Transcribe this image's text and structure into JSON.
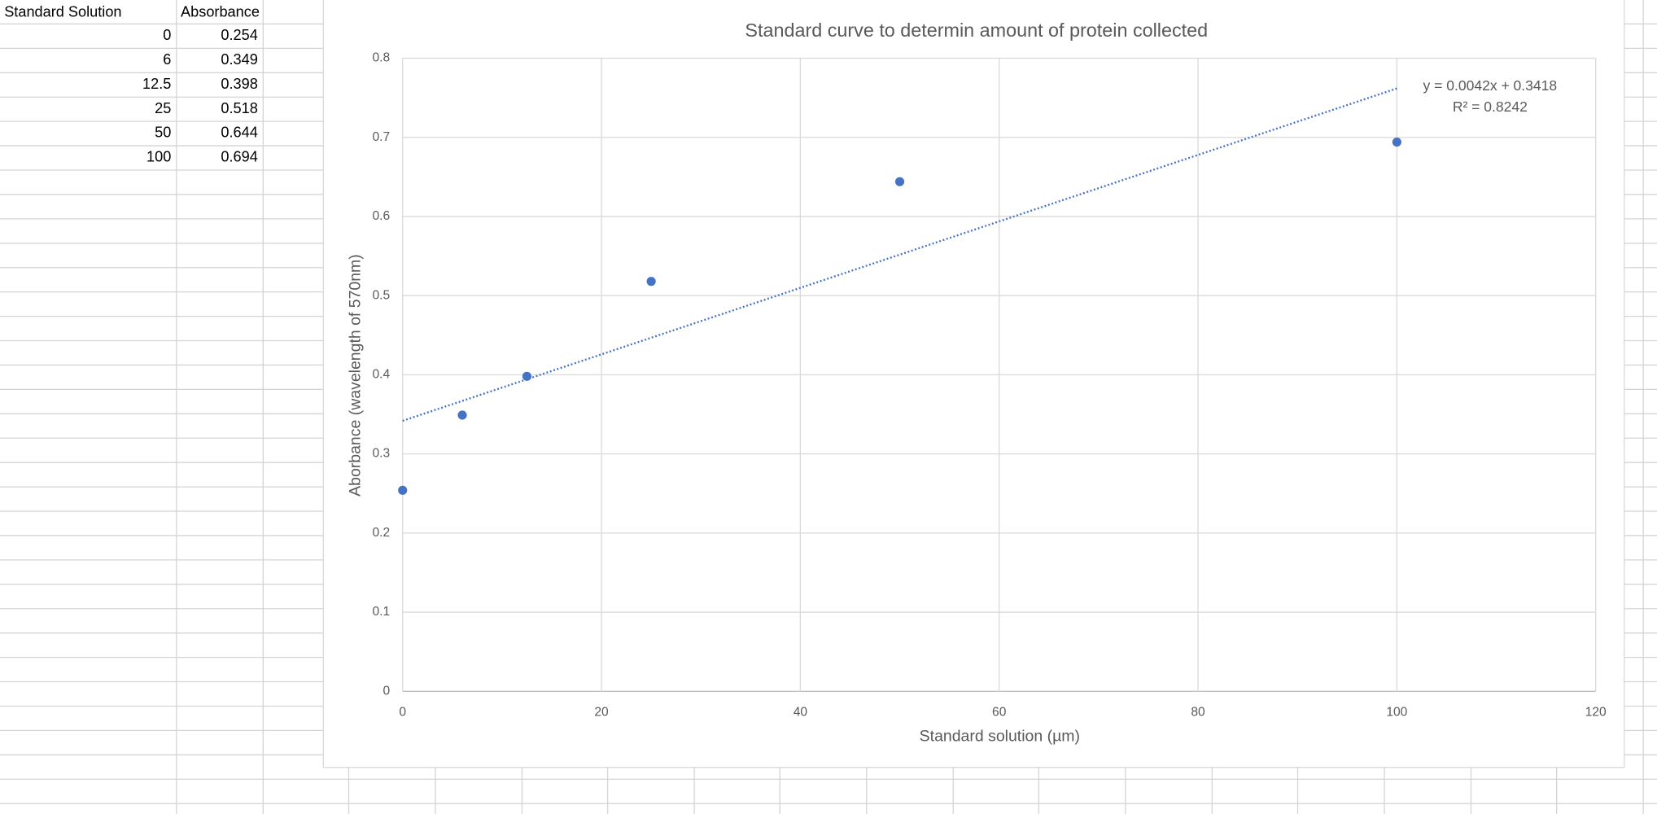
{
  "table": {
    "header": [
      "Standard Solution",
      "Absorbance"
    ],
    "rows": [
      [
        0,
        0.254
      ],
      [
        6,
        0.349
      ],
      [
        12.5,
        0.398
      ],
      [
        25,
        0.518
      ],
      [
        50,
        0.644
      ],
      [
        100,
        0.694
      ]
    ]
  },
  "chart_data": {
    "type": "scatter",
    "title": "Standard curve to determin amount of protein collected",
    "x_label": "Standard solution  (µm)",
    "y_label": "Aborbance (wavelength of 570nm)",
    "x": [
      0,
      6,
      12.5,
      25,
      50,
      100
    ],
    "series": [
      {
        "name": "Absorbance",
        "color": "#4472c4",
        "values": [
          0.254,
          0.349,
          0.398,
          0.518,
          0.644,
          0.694
        ]
      }
    ],
    "xlim": [
      0,
      120
    ],
    "xticks": [
      0,
      20,
      40,
      60,
      80,
      100,
      120
    ],
    "ylim": [
      0,
      0.8
    ],
    "yticks": [
      0,
      0.1,
      0.2,
      0.3,
      0.4,
      0.5,
      0.6,
      0.7,
      0.8
    ],
    "grid": true,
    "trendline": {
      "slope": 0.0042,
      "intercept": 0.3418,
      "equation": "y = 0.0042x + 0.3418",
      "r_squared": "R² = 0.8242"
    }
  }
}
